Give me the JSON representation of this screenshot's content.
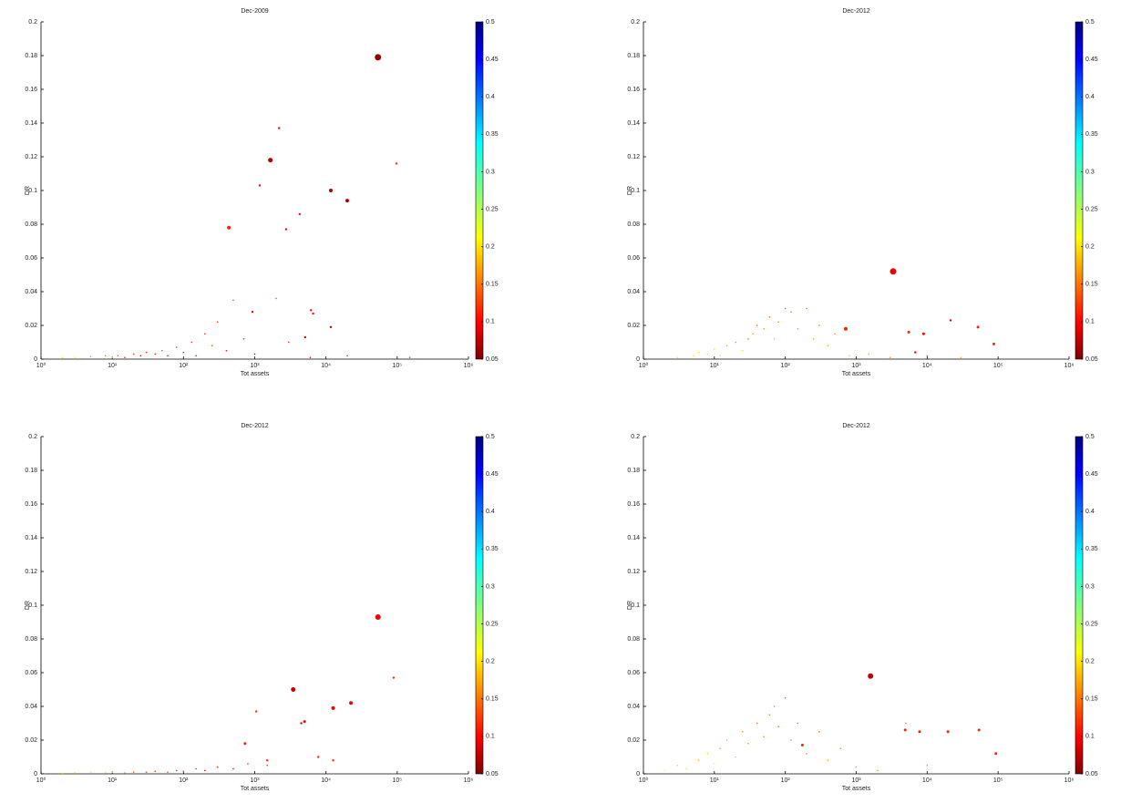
{
  "chart_data": [
    {
      "type": "scatter",
      "title": "Dec-2009",
      "xlabel": "Tot assets",
      "ylabel": "DR",
      "log_x": true,
      "colormap": "jet_r",
      "xlim": [
        1,
        1000000
      ],
      "xticks": [
        {
          "value": 1,
          "label": "10⁰"
        },
        {
          "value": 10,
          "label": "10¹"
        },
        {
          "value": 100,
          "label": "10²"
        },
        {
          "value": 1000,
          "label": "10³"
        },
        {
          "value": 10000,
          "label": "10⁴"
        },
        {
          "value": 100000,
          "label": "10⁵"
        },
        {
          "value": 1000000,
          "label": "10⁶"
        }
      ],
      "ylim": [
        0,
        0.2
      ],
      "yticks": [
        0,
        0.02,
        0.04,
        0.06,
        0.08,
        0.1,
        0.12,
        0.14,
        0.16,
        0.18,
        0.2
      ],
      "clim": [
        0.05,
        0.5
      ],
      "cticks": [
        0.05,
        0.1,
        0.15,
        0.2,
        0.25,
        0.3,
        0.35,
        0.4,
        0.45,
        0.5
      ],
      "series": [
        {
          "x": [
            53700,
            1660,
            2190,
            1175,
            97700,
            11700,
            19900,
            4270,
            2750,
            433,
            6170,
            6600,
            930,
            11700,
            5100,
            2,
            3,
            5,
            8,
            10,
            12,
            15,
            20,
            25,
            30,
            40,
            50,
            60,
            80,
            100,
            130,
            150,
            200,
            250,
            300,
            400,
            500,
            700,
            1000,
            2000,
            3000,
            6000,
            20000,
            150000
          ],
          "values": [
            0.179,
            0.118,
            0.137,
            0.103,
            0.116,
            0.1,
            0.094,
            0.086,
            0.077,
            0.078,
            0.029,
            0.027,
            0.028,
            0.019,
            0.013,
            0.001,
            0.001,
            0.0015,
            0.002,
            0.001,
            0.002,
            0.001,
            0.003,
            0.002,
            0.004,
            0.003,
            0.005,
            0.002,
            0.007,
            0.004,
            0.01,
            0.002,
            0.015,
            0.008,
            0.022,
            0.005,
            0.035,
            0.012,
            0.003,
            0.036,
            0.01,
            0.001,
            0.002,
            0.001
          ],
          "color_values": [
            0.06,
            0.07,
            0.1,
            0.1,
            0.12,
            0.07,
            0.07,
            0.1,
            0.1,
            0.12,
            0.1,
            0.1,
            0.1,
            0.08,
            0.08,
            0.2,
            0.22,
            0.18,
            0.16,
            0.2,
            0.14,
            0.12,
            0.13,
            0.1,
            0.12,
            0.11,
            0.13,
            0.1,
            0.12,
            0.11,
            0.13,
            0.1,
            0.12,
            0.14,
            0.13,
            0.1,
            0.14,
            0.12,
            0.1,
            0.14,
            0.12,
            0.1,
            0.12,
            0.13
          ],
          "sizes": [
            3.5,
            2.5,
            1.2,
            1.2,
            1.2,
            2,
            2,
            1.2,
            1.2,
            2,
            1.2,
            1.2,
            1.2,
            1.2,
            1.2,
            0.8,
            0.8,
            0.8,
            0.8,
            0.8,
            0.8,
            0.8,
            0.8,
            0.8,
            0.8,
            0.8,
            0.8,
            0.8,
            0.8,
            0.8,
            0.8,
            0.8,
            0.8,
            0.8,
            0.8,
            0.8,
            0.8,
            0.8,
            0.8,
            0.8,
            0.8,
            0.8,
            0.8,
            0.8
          ]
        }
      ]
    },
    {
      "type": "scatter",
      "title": "Dec-2012",
      "xlabel": "Tot assets",
      "ylabel": "DR",
      "log_x": true,
      "colormap": "jet_r",
      "xlim": [
        1,
        1000000
      ],
      "xticks": [
        {
          "value": 1,
          "label": "10⁰"
        },
        {
          "value": 10,
          "label": "10¹"
        },
        {
          "value": 100,
          "label": "10²"
        },
        {
          "value": 1000,
          "label": "10³"
        },
        {
          "value": 10000,
          "label": "10⁴"
        },
        {
          "value": 100000,
          "label": "10⁵"
        },
        {
          "value": 1000000,
          "label": "10⁶"
        }
      ],
      "ylim": [
        0,
        0.2
      ],
      "yticks": [
        0,
        0.02,
        0.04,
        0.06,
        0.08,
        0.1,
        0.12,
        0.14,
        0.16,
        0.18,
        0.2
      ],
      "clim": [
        0.05,
        0.5
      ],
      "cticks": [
        0.05,
        0.1,
        0.15,
        0.2,
        0.25,
        0.3,
        0.35,
        0.4,
        0.45,
        0.5
      ],
      "series": [
        {
          "x": [
            3310,
            710,
            5500,
            8900,
            21400,
            52000,
            87000,
            6800,
            3,
            5,
            6,
            8,
            10,
            12,
            15,
            20,
            25,
            30,
            35,
            40,
            50,
            60,
            70,
            80,
            100,
            120,
            150,
            200,
            250,
            300,
            400,
            500,
            800,
            1500,
            3000,
            10000,
            30000
          ],
          "values": [
            0.052,
            0.018,
            0.016,
            0.015,
            0.023,
            0.019,
            0.009,
            0.004,
            0.001,
            0.002,
            0.004,
            0.003,
            0.006,
            0.002,
            0.008,
            0.01,
            0.005,
            0.012,
            0.015,
            0.02,
            0.018,
            0.025,
            0.012,
            0.022,
            0.03,
            0.028,
            0.018,
            0.03,
            0.012,
            0.02,
            0.008,
            0.015,
            0.002,
            0.003,
            0.001,
            0.002,
            0.001
          ],
          "color_values": [
            0.1,
            0.12,
            0.12,
            0.1,
            0.1,
            0.12,
            0.12,
            0.1,
            0.25,
            0.22,
            0.2,
            0.26,
            0.2,
            0.24,
            0.18,
            0.17,
            0.2,
            0.16,
            0.18,
            0.15,
            0.17,
            0.15,
            0.19,
            0.16,
            0.15,
            0.16,
            0.17,
            0.15,
            0.18,
            0.16,
            0.18,
            0.17,
            0.2,
            0.18,
            0.17,
            0.15,
            0.18
          ],
          "sizes": [
            3.5,
            2,
            1.5,
            1.5,
            1.2,
            1.5,
            1.5,
            1.2,
            0.8,
            0.8,
            0.8,
            0.8,
            0.8,
            0.8,
            0.8,
            0.8,
            0.8,
            0.8,
            0.8,
            0.8,
            0.8,
            0.8,
            0.8,
            0.8,
            0.8,
            0.8,
            0.8,
            0.8,
            0.8,
            0.8,
            0.8,
            0.8,
            0.8,
            0.8,
            0.8,
            0.8,
            0.8
          ]
        }
      ]
    },
    {
      "type": "scatter",
      "title": "Dec-2012",
      "xlabel": "Tot assets",
      "ylabel": "DR",
      "log_x": true,
      "colormap": "jet_r",
      "xlim": [
        1,
        1000000
      ],
      "xticks": [
        {
          "value": 1,
          "label": "10⁰"
        },
        {
          "value": 10,
          "label": "10¹"
        },
        {
          "value": 100,
          "label": "10²"
        },
        {
          "value": 1000,
          "label": "10³"
        },
        {
          "value": 10000,
          "label": "10⁴"
        },
        {
          "value": 100000,
          "label": "10⁵"
        },
        {
          "value": 1000000,
          "label": "10⁶"
        }
      ],
      "ylim": [
        0,
        0.2
      ],
      "yticks": [
        0,
        0.02,
        0.04,
        0.06,
        0.08,
        0.1,
        0.12,
        0.14,
        0.16,
        0.18,
        0.2
      ],
      "clim": [
        0.05,
        0.5
      ],
      "cticks": [
        0.05,
        0.1,
        0.15,
        0.2,
        0.25,
        0.3,
        0.35,
        0.4,
        0.45,
        0.5
      ],
      "series": [
        {
          "x": [
            53700,
            89000,
            3470,
            22400,
            12600,
            5000,
            4500,
            1050,
            730,
            1500,
            7800,
            12600,
            2,
            3,
            5,
            8,
            10,
            15,
            20,
            30,
            40,
            60,
            80,
            100,
            150,
            200,
            300,
            500,
            800,
            1500
          ],
          "values": [
            0.093,
            0.057,
            0.05,
            0.042,
            0.039,
            0.031,
            0.03,
            0.037,
            0.018,
            0.008,
            0.01,
            0.008,
            0.0005,
            0.0005,
            0.001,
            0.0005,
            0.001,
            0.0005,
            0.001,
            0.001,
            0.0015,
            0.001,
            0.002,
            0.0015,
            0.003,
            0.002,
            0.004,
            0.003,
            0.006,
            0.005
          ],
          "color_values": [
            0.1,
            0.12,
            0.08,
            0.1,
            0.1,
            0.1,
            0.1,
            0.12,
            0.12,
            0.12,
            0.12,
            0.12,
            0.22,
            0.2,
            0.24,
            0.18,
            0.2,
            0.16,
            0.15,
            0.14,
            0.13,
            0.14,
            0.12,
            0.13,
            0.12,
            0.11,
            0.12,
            0.11,
            0.12,
            0.11
          ],
          "sizes": [
            3,
            1.2,
            2.5,
            2,
            2,
            1.5,
            1.2,
            1.2,
            1.5,
            1.2,
            1.2,
            1.2,
            0.8,
            0.8,
            0.8,
            0.8,
            0.8,
            0.8,
            0.8,
            0.8,
            0.8,
            0.8,
            0.8,
            0.8,
            0.8,
            0.8,
            0.8,
            0.8,
            0.8,
            0.8
          ]
        }
      ]
    },
    {
      "type": "scatter",
      "title": "Dec-2012",
      "xlabel": "Tot assets",
      "ylabel": "DR",
      "log_x": true,
      "colormap": "jet_r",
      "xlim": [
        1,
        1000000
      ],
      "xticks": [
        {
          "value": 1,
          "label": "10⁰"
        },
        {
          "value": 10,
          "label": "10¹"
        },
        {
          "value": 100,
          "label": "10²"
        },
        {
          "value": 1000,
          "label": "10³"
        },
        {
          "value": 10000,
          "label": "10⁴"
        },
        {
          "value": 100000,
          "label": "10⁵"
        },
        {
          "value": 1000000,
          "label": "10⁶"
        }
      ],
      "ylim": [
        0,
        0.2
      ],
      "yticks": [
        0,
        0.02,
        0.04,
        0.06,
        0.08,
        0.1,
        0.12,
        0.14,
        0.16,
        0.18,
        0.2
      ],
      "clim": [
        0.05,
        0.5
      ],
      "cticks": [
        0.05,
        0.1,
        0.15,
        0.2,
        0.25,
        0.3,
        0.35,
        0.4,
        0.45,
        0.5
      ],
      "series": [
        {
          "x": [
            1590,
            4900,
            7800,
            19600,
            53700,
            93000,
            174,
            2,
            3,
            4,
            6,
            8,
            10,
            12,
            15,
            20,
            25,
            30,
            40,
            50,
            60,
            70,
            80,
            100,
            120,
            150,
            200,
            300,
            400,
            600,
            1000,
            2000,
            5000,
            10000
          ],
          "values": [
            0.058,
            0.026,
            0.025,
            0.025,
            0.026,
            0.012,
            0.017,
            0.002,
            0.005,
            0.003,
            0.008,
            0.012,
            0.006,
            0.015,
            0.02,
            0.01,
            0.025,
            0.018,
            0.03,
            0.022,
            0.035,
            0.04,
            0.028,
            0.045,
            0.02,
            0.03,
            0.012,
            0.025,
            0.008,
            0.015,
            0.004,
            0.002,
            0.03,
            0.005
          ],
          "color_values": [
            0.08,
            0.12,
            0.12,
            0.12,
            0.12,
            0.12,
            0.12,
            0.22,
            0.2,
            0.25,
            0.18,
            0.2,
            0.22,
            0.17,
            0.18,
            0.2,
            0.16,
            0.17,
            0.15,
            0.16,
            0.15,
            0.16,
            0.15,
            0.14,
            0.16,
            0.15,
            0.17,
            0.15,
            0.18,
            0.16,
            0.18,
            0.17,
            0.15,
            0.16
          ],
          "sizes": [
            3,
            1.5,
            1.5,
            1.5,
            1.5,
            1.5,
            1.5,
            0.8,
            0.8,
            0.8,
            0.8,
            0.8,
            0.8,
            0.8,
            0.8,
            0.8,
            0.8,
            0.8,
            0.8,
            0.8,
            0.8,
            0.8,
            0.8,
            0.8,
            0.8,
            0.8,
            0.8,
            0.8,
            0.8,
            0.8,
            0.8,
            0.8,
            0.8,
            0.8
          ]
        }
      ]
    }
  ]
}
